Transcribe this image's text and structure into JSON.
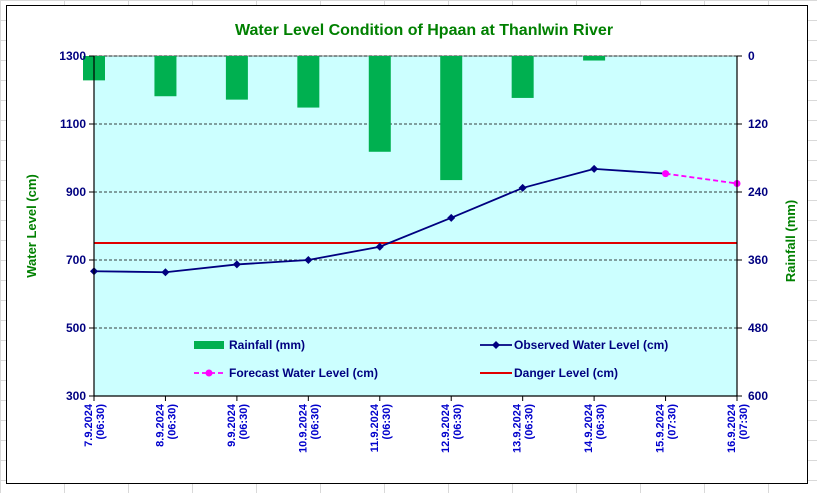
{
  "chart_data": {
    "type": "bar+line",
    "title": "Water Level Condition of Hpaan at Thanlwin River",
    "ylabel_left": "Water Level (cm)",
    "ylabel_right": "Rainfall (mm)",
    "ylim_left": [
      300,
      1300
    ],
    "yticks_left": [
      "300",
      "500",
      "700",
      "900",
      "1100",
      "1300"
    ],
    "ylim_right": [
      0,
      600
    ],
    "right_axis_inverted": true,
    "yticks_right": [
      "0",
      "120",
      "240",
      "360",
      "480",
      "600"
    ],
    "categories": [
      [
        "7.9.2024",
        "(06:30)"
      ],
      [
        "8.9.2024",
        "(06:30)"
      ],
      [
        "9.9.2024",
        "(06:30)"
      ],
      [
        "10.9.2024",
        "(06:30)"
      ],
      [
        "11.9.2024",
        "(06:30)"
      ],
      [
        "12.9.2024",
        "(06:30)"
      ],
      [
        "13.9.2024",
        "(06:30)"
      ],
      [
        "14.9.2024",
        "(06:30)"
      ],
      [
        "15.9.2024",
        "(07:30)"
      ],
      [
        "16.9.2024",
        "(07:30)"
      ]
    ],
    "grid": "horizontal dashed",
    "series": [
      {
        "name": "Rainfall (mm)",
        "type": "bar",
        "axis": "right",
        "color": "#00b050",
        "values": [
          43,
          71,
          77,
          91,
          169,
          219,
          74,
          8,
          null,
          null
        ]
      },
      {
        "name": "Observed Water Level (cm)",
        "type": "line",
        "axis": "left",
        "color": "#000080",
        "values": [
          667,
          664,
          687,
          700,
          739,
          824,
          912,
          968,
          954,
          null
        ]
      },
      {
        "name": "Forecast Water Level (cm)",
        "type": "line",
        "axis": "left",
        "color": "#ff00ff",
        "dashed": true,
        "values": [
          null,
          null,
          null,
          null,
          null,
          null,
          null,
          null,
          954,
          925
        ]
      },
      {
        "name": "Danger Level (cm)",
        "type": "line",
        "axis": "left",
        "color": "#e00000",
        "values": [
          750,
          750,
          750,
          750,
          750,
          750,
          750,
          750,
          750,
          750
        ]
      }
    ],
    "legend": "inside-bottom"
  }
}
